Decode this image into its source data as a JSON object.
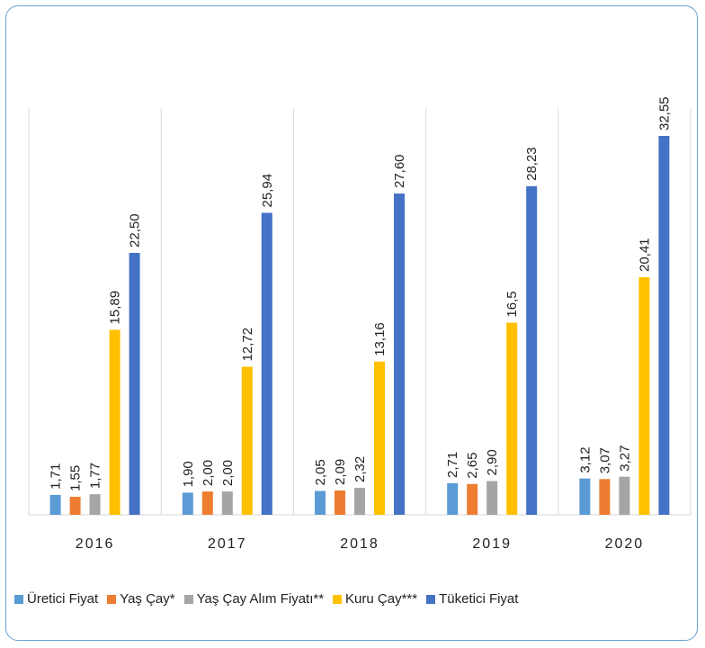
{
  "chart_data": {
    "type": "bar",
    "categories": [
      "2016",
      "2017",
      "2018",
      "2019",
      "2020"
    ],
    "series": [
      {
        "name": "Üretici Fiyat",
        "color": "#5b9bd5",
        "values": [
          1.71,
          1.9,
          2.05,
          2.71,
          3.12
        ],
        "labels": [
          "1,71",
          "1,90",
          "2,05",
          "2,71",
          "3,12"
        ]
      },
      {
        "name": "Yaş Çay*",
        "color": "#ed7d31",
        "values": [
          1.55,
          2.0,
          2.09,
          2.65,
          3.07
        ],
        "labels": [
          "1,55",
          "2,00",
          "2,09",
          "2,65",
          "3,07"
        ]
      },
      {
        "name": "Yaş Çay Alım Fiyatı**",
        "color": "#a5a5a5",
        "values": [
          1.77,
          2.0,
          2.32,
          2.9,
          3.27
        ],
        "labels": [
          "1,77",
          "2,00",
          "2,32",
          "2,90",
          "3,27"
        ]
      },
      {
        "name": "Kuru Çay***",
        "color": "#ffc000",
        "values": [
          15.89,
          12.72,
          13.16,
          16.5,
          20.41
        ],
        "labels": [
          "15,89",
          "12,72",
          "13,16",
          "16,5",
          "20,41"
        ]
      },
      {
        "name": "Tüketici Fiyat",
        "color": "#4472c4",
        "values": [
          22.5,
          25.94,
          27.6,
          28.23,
          32.55
        ],
        "labels": [
          "22,50",
          "25,94",
          "27,60",
          "28,23",
          "32,55"
        ]
      }
    ],
    "title": "",
    "xlabel": "",
    "ylabel": "",
    "ylim": [
      0,
      32.55
    ],
    "grid": "vertical category separators",
    "legend": "bottom"
  }
}
